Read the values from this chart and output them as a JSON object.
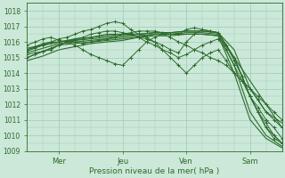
{
  "xlabel": "Pression niveau de la mer( hPa )",
  "bg_color": "#cce8d8",
  "grid_color": "#99ccb8",
  "line_color": "#2d6b2d",
  "ylim": [
    1009,
    1018.5
  ],
  "xlim": [
    0,
    96
  ],
  "xtick_positions": [
    12,
    36,
    60,
    84
  ],
  "xtick_labels": [
    "Mer",
    "Jeu",
    "Ven",
    "Sam"
  ],
  "ytick_positions": [
    1009,
    1010,
    1011,
    1012,
    1013,
    1014,
    1015,
    1016,
    1017,
    1018
  ],
  "lines": [
    {
      "x": [
        0,
        6,
        12,
        18,
        24,
        30,
        36,
        42,
        48,
        54,
        60,
        66,
        72,
        78,
        84,
        90,
        96
      ],
      "y": [
        1015.5,
        1015.8,
        1016.0,
        1016.1,
        1016.2,
        1016.3,
        1016.4,
        1016.5,
        1016.6,
        1016.6,
        1016.7,
        1016.7,
        1016.6,
        1015.0,
        1012.5,
        1010.5,
        1009.5
      ]
    },
    {
      "x": [
        0,
        6,
        12,
        18,
        24,
        30,
        36,
        42,
        48,
        54,
        60,
        66,
        72,
        78,
        84,
        90,
        96
      ],
      "y": [
        1015.3,
        1015.6,
        1015.9,
        1016.0,
        1016.1,
        1016.2,
        1016.3,
        1016.4,
        1016.5,
        1016.5,
        1016.6,
        1016.6,
        1016.5,
        1014.5,
        1011.5,
        1010.0,
        1009.3
      ]
    },
    {
      "x": [
        0,
        6,
        12,
        18,
        24,
        30,
        36,
        42,
        48,
        54,
        60,
        66,
        72,
        78,
        84,
        90,
        96
      ],
      "y": [
        1015.0,
        1015.4,
        1015.8,
        1015.9,
        1016.0,
        1016.1,
        1016.2,
        1016.3,
        1016.4,
        1016.4,
        1016.5,
        1016.5,
        1016.4,
        1014.0,
        1011.0,
        1009.8,
        1009.2
      ]
    },
    {
      "x": [
        0,
        6,
        12,
        18,
        24,
        30,
        36,
        42,
        48,
        54,
        60,
        66,
        72,
        78,
        84,
        90,
        96
      ],
      "y": [
        1014.8,
        1015.1,
        1015.5,
        1015.7,
        1015.9,
        1016.0,
        1016.1,
        1016.3,
        1016.5,
        1016.5,
        1016.5,
        1016.5,
        1016.4,
        1015.0,
        1013.5,
        1012.0,
        1010.5
      ]
    },
    {
      "x": [
        0,
        6,
        12,
        18,
        24,
        30,
        36,
        42,
        48,
        54,
        60,
        66,
        72,
        78,
        84,
        90,
        96
      ],
      "y": [
        1015.6,
        1015.8,
        1016.0,
        1016.2,
        1016.3,
        1016.4,
        1016.5,
        1016.5,
        1016.6,
        1016.6,
        1016.7,
        1016.7,
        1016.6,
        1015.5,
        1013.0,
        1011.5,
        1010.8
      ]
    },
    {
      "x": [
        0,
        3,
        6,
        9,
        12,
        15,
        18,
        21,
        24,
        27,
        30,
        33,
        36,
        39,
        42,
        45,
        48,
        51,
        54,
        57,
        60,
        63,
        66,
        69,
        72,
        75,
        78,
        81,
        84,
        87,
        90,
        93,
        96
      ],
      "y": [
        1015.5,
        1015.7,
        1015.9,
        1016.0,
        1016.0,
        1016.1,
        1016.0,
        1015.9,
        1016.0,
        1016.1,
        1016.2,
        1016.3,
        1016.5,
        1016.6,
        1016.7,
        1016.7,
        1016.7,
        1016.6,
        1016.5,
        1016.5,
        1016.8,
        1016.9,
        1016.8,
        1016.7,
        1016.6,
        1015.8,
        1015.0,
        1013.8,
        1012.5,
        1011.5,
        1010.5,
        1009.8,
        1009.5
      ]
    },
    {
      "x": [
        0,
        3,
        6,
        9,
        12,
        15,
        18,
        21,
        24,
        27,
        30,
        33,
        36,
        39,
        42,
        45,
        48,
        51,
        54,
        57,
        60,
        63,
        66,
        69,
        72,
        75,
        78,
        81,
        84,
        87,
        90,
        93,
        96
      ],
      "y": [
        1015.2,
        1015.3,
        1015.4,
        1015.5,
        1015.8,
        1016.0,
        1016.1,
        1016.2,
        1016.3,
        1016.4,
        1016.5,
        1016.5,
        1016.5,
        1016.5,
        1016.3,
        1016.0,
        1015.8,
        1015.5,
        1015.3,
        1015.0,
        1015.2,
        1015.5,
        1015.8,
        1016.0,
        1016.2,
        1015.5,
        1014.5,
        1013.5,
        1012.5,
        1011.5,
        1010.8,
        1010.0,
        1009.5
      ]
    },
    {
      "x": [
        0,
        3,
        6,
        9,
        12,
        15,
        18,
        21,
        24,
        27,
        30,
        33,
        36,
        39,
        42,
        45,
        48,
        51,
        54,
        57,
        60,
        63,
        66,
        69,
        72,
        75,
        78,
        81,
        84,
        87,
        90,
        93,
        96
      ],
      "y": [
        1015.8,
        1016.0,
        1016.2,
        1016.3,
        1016.1,
        1016.0,
        1015.8,
        1015.5,
        1015.2,
        1015.0,
        1014.8,
        1014.6,
        1014.5,
        1015.0,
        1015.5,
        1016.0,
        1016.3,
        1016.5,
        1016.3,
        1016.0,
        1015.8,
        1015.5,
        1015.3,
        1015.0,
        1014.8,
        1014.5,
        1014.0,
        1013.5,
        1013.0,
        1012.5,
        1012.0,
        1011.5,
        1011.0
      ]
    },
    {
      "x": [
        0,
        3,
        6,
        9,
        12,
        15,
        18,
        21,
        24,
        27,
        30,
        33,
        36,
        39,
        42,
        45,
        48,
        51,
        54,
        57,
        60,
        63,
        66,
        69,
        72,
        75,
        78,
        81,
        84,
        87,
        90,
        93,
        96
      ],
      "y": [
        1015.4,
        1015.6,
        1015.8,
        1016.0,
        1016.2,
        1016.3,
        1016.5,
        1016.7,
        1016.8,
        1017.0,
        1017.2,
        1017.3,
        1017.2,
        1016.8,
        1016.5,
        1016.3,
        1016.0,
        1015.5,
        1015.0,
        1014.5,
        1014.0,
        1014.5,
        1015.0,
        1015.3,
        1015.5,
        1014.8,
        1014.0,
        1013.5,
        1013.0,
        1012.3,
        1011.5,
        1011.0,
        1010.5
      ]
    },
    {
      "x": [
        0,
        3,
        6,
        9,
        12,
        15,
        18,
        21,
        24,
        27,
        30,
        33,
        36,
        39,
        42,
        45,
        48,
        51,
        54,
        57,
        60,
        63,
        66,
        69,
        72,
        75,
        78,
        81,
        84,
        87,
        90,
        93,
        96
      ],
      "y": [
        1015.0,
        1015.2,
        1015.4,
        1015.6,
        1015.8,
        1016.0,
        1016.2,
        1016.3,
        1016.5,
        1016.6,
        1016.7,
        1016.7,
        1016.6,
        1016.5,
        1016.3,
        1016.2,
        1016.0,
        1015.8,
        1015.5,
        1015.3,
        1016.0,
        1016.5,
        1016.8,
        1016.7,
        1016.6,
        1015.8,
        1014.8,
        1013.8,
        1012.5,
        1011.8,
        1011.0,
        1010.5,
        1009.8
      ]
    }
  ]
}
